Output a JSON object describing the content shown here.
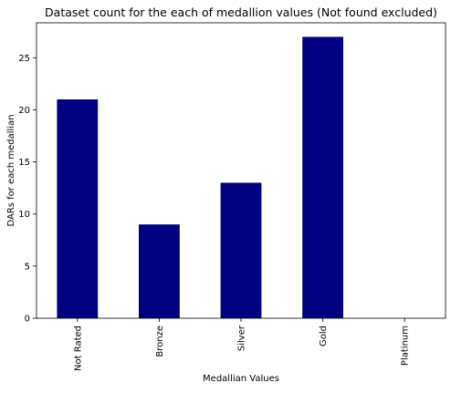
{
  "chart_data": {
    "type": "bar",
    "title": "Dataset count for the each of medallion values (Not found excluded)",
    "xlabel": "Medallian Values",
    "ylabel": "DARs for each medallian",
    "categories": [
      "Not Rated",
      "Bronze",
      "Silver",
      "Gold",
      "Platinum"
    ],
    "values": [
      21,
      9,
      13,
      27,
      0
    ],
    "ylim": [
      0,
      28.35
    ],
    "yticks": [
      0,
      5,
      10,
      15,
      20,
      25
    ],
    "grid": false,
    "legend": "none",
    "bar_color": "#000080"
  }
}
